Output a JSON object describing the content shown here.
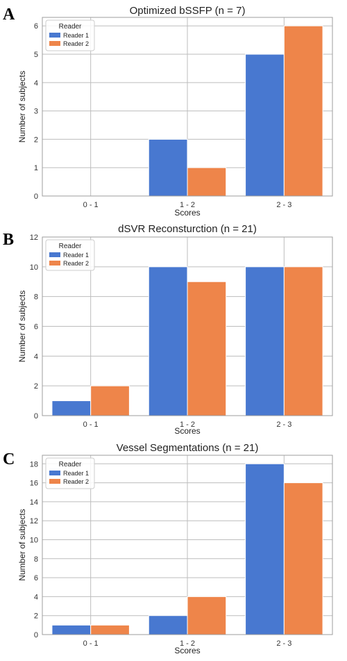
{
  "figure": {
    "legend": {
      "title": "Reader"
    },
    "colors": {
      "reader1": "#4878d0",
      "reader2": "#ee854a"
    }
  },
  "chart_data": [
    {
      "type": "bar",
      "panel": "A",
      "title": "Optimized bSSFP (n = 7)",
      "xlabel": "Scores",
      "ylabel": "Number of subjects",
      "categories": [
        "0 - 1",
        "1 - 2",
        "2 - 3"
      ],
      "series": [
        {
          "name": "Reader 1",
          "values": [
            0,
            2,
            5
          ]
        },
        {
          "name": "Reader 2",
          "values": [
            0,
            1,
            6
          ]
        }
      ],
      "ylim": [
        0,
        6.3
      ],
      "yticks": [
        0,
        1,
        2,
        3,
        4,
        5,
        6
      ],
      "grid": true,
      "legend_position": "top-left"
    },
    {
      "type": "bar",
      "panel": "B",
      "title": "dSVR Reconsturction (n = 21)",
      "xlabel": "Scores",
      "ylabel": "Number of subjects",
      "categories": [
        "0 - 1",
        "1 - 2",
        "2 - 3"
      ],
      "series": [
        {
          "name": "Reader 1",
          "values": [
            1,
            10,
            10
          ]
        },
        {
          "name": "Reader 2",
          "values": [
            2,
            9,
            10
          ]
        }
      ],
      "ylim": [
        0,
        12
      ],
      "yticks": [
        0,
        2,
        4,
        6,
        8,
        10,
        12
      ],
      "grid": true,
      "legend_position": "top-left"
    },
    {
      "type": "bar",
      "panel": "C",
      "title": "Vessel Segmentations (n = 21)",
      "xlabel": "Scores",
      "ylabel": "Number of subjects",
      "categories": [
        "0 - 1",
        "1 - 2",
        "2 - 3"
      ],
      "series": [
        {
          "name": "Reader 1",
          "values": [
            1,
            2,
            18
          ]
        },
        {
          "name": "Reader 2",
          "values": [
            1,
            4,
            16
          ]
        }
      ],
      "ylim": [
        0,
        18.9
      ],
      "yticks": [
        0,
        2,
        4,
        6,
        8,
        10,
        12,
        14,
        16,
        18
      ],
      "grid": true,
      "legend_position": "top-left"
    }
  ]
}
